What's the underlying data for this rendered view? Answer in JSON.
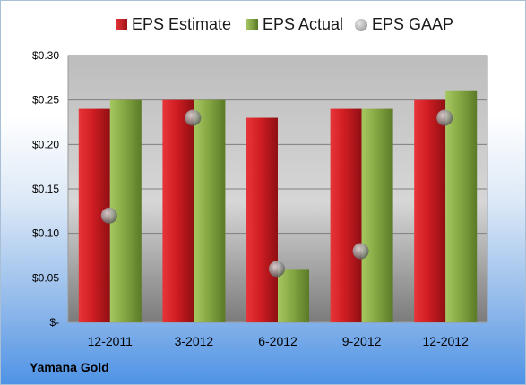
{
  "chart_data": {
    "type": "bar",
    "categories": [
      "12-2011",
      "3-2012",
      "6-2012",
      "9-2012",
      "12-2012"
    ],
    "series": [
      {
        "name": "EPS Estimate",
        "type": "bar",
        "values": [
          0.24,
          0.25,
          0.23,
          0.24,
          0.25
        ],
        "color": "#d32025"
      },
      {
        "name": "EPS Actual",
        "type": "bar",
        "values": [
          0.25,
          0.25,
          0.06,
          0.24,
          0.26
        ],
        "color": "#8db04a"
      },
      {
        "name": "EPS GAAP",
        "type": "scatter",
        "values": [
          0.12,
          0.23,
          0.06,
          0.08,
          0.23
        ],
        "color": "#b5b5b5"
      }
    ],
    "ylim": [
      0,
      0.3
    ],
    "yticks": [
      0,
      0.05,
      0.1,
      0.15,
      0.2,
      0.25,
      0.3
    ],
    "ytick_labels": [
      "$-",
      "$0.05",
      "$0.10",
      "$0.15",
      "$0.20",
      "$0.25",
      "$0.30"
    ],
    "grid": true,
    "legend_position": "top",
    "company": "Yamana Gold"
  }
}
